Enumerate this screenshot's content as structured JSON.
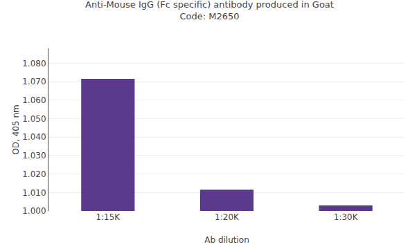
{
  "chart_data": {
    "type": "bar",
    "title": "Anti-Mouse IgG (Fc specific) antibody produced in Goat",
    "subtitle": "Code: M2650",
    "xlabel": "Ab dilution",
    "ylabel": "OD, 405 nm",
    "categories": [
      "1:15K",
      "1:20K",
      "1:30K"
    ],
    "values": [
      1.0715,
      1.0115,
      1.003
    ],
    "color": "#5b3a8c",
    "ylim": [
      1.0,
      1.088
    ],
    "yticks": [
      {
        "value": 1.0,
        "label": "1.000"
      },
      {
        "value": 1.01,
        "label": "1.010"
      },
      {
        "value": 1.02,
        "label": "1.020"
      },
      {
        "value": 1.03,
        "label": "1.030"
      },
      {
        "value": 1.04,
        "label": "1.040"
      },
      {
        "value": 1.05,
        "label": "1.050"
      },
      {
        "value": 1.06,
        "label": "1.060"
      },
      {
        "value": 1.07,
        "label": "1.070"
      },
      {
        "value": 1.08,
        "label": "1.080"
      }
    ],
    "grid": true
  }
}
